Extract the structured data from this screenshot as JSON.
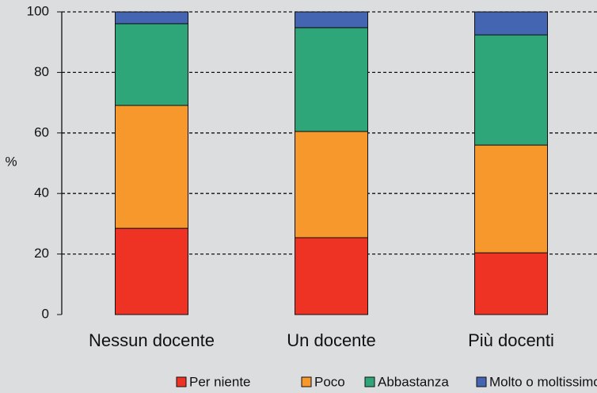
{
  "chart_data": {
    "type": "stacked_bar",
    "ylabel": "%",
    "categories": [
      "Nessun docente",
      "Un docente",
      "Più docenti"
    ],
    "series": [
      {
        "name": "Per niente",
        "color": "#ee3224",
        "values": [
          28.5,
          25.4,
          20.4
        ]
      },
      {
        "name": "Poco",
        "color": "#f7982d",
        "values": [
          40.6,
          35.1,
          35.6
        ]
      },
      {
        "name": "Abbastanza",
        "color": "#2ea67a",
        "values": [
          27.0,
          34.3,
          36.4
        ]
      },
      {
        "name": "Molto o moltissimo",
        "color": "#4465b2",
        "values": [
          3.9,
          5.2,
          7.6
        ]
      }
    ],
    "ylim": [
      0,
      100
    ],
    "yticks": [
      0,
      20,
      40,
      60,
      80,
      100
    ],
    "grid": true,
    "legend": "bottom"
  }
}
